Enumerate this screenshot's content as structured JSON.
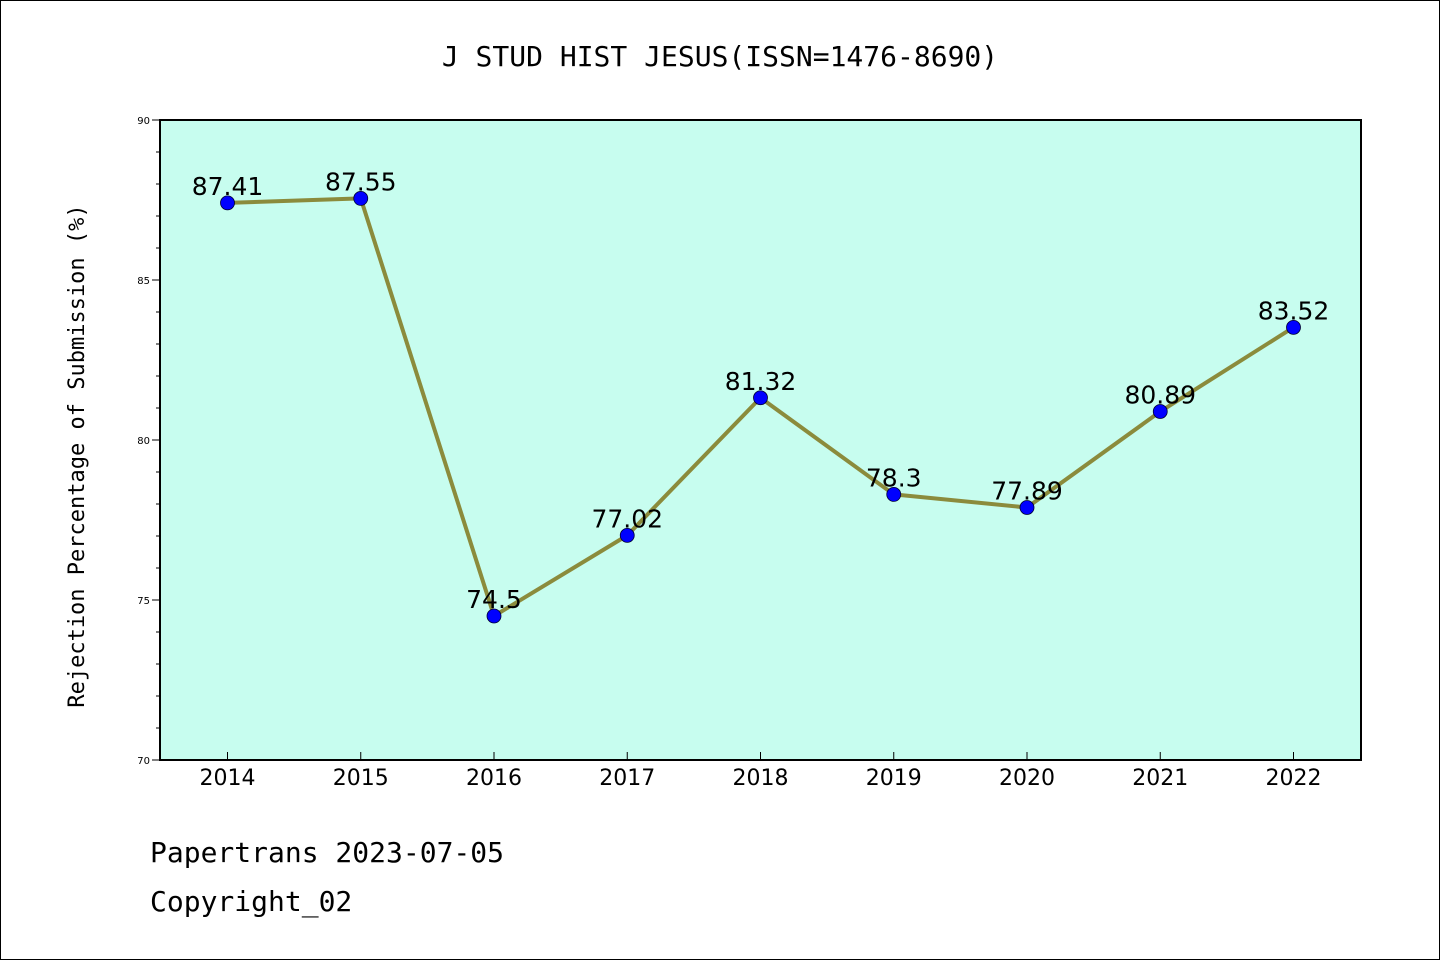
{
  "chart_data": {
    "type": "line",
    "title": "J STUD HIST JESUS(ISSN=1476-8690)",
    "xlabel": "",
    "ylabel": "Rejection Percentage of Submission (%)",
    "categories": [
      "2014",
      "2015",
      "2016",
      "2017",
      "2018",
      "2019",
      "2020",
      "2021",
      "2022"
    ],
    "values": [
      87.41,
      87.55,
      74.5,
      77.02,
      81.32,
      78.3,
      77.89,
      80.89,
      83.52
    ],
    "data_labels": [
      "87.41",
      "87.55",
      "74.5",
      "77.02",
      "81.32",
      "78.3",
      "77.89",
      "80.89",
      "83.52"
    ],
    "ylim": [
      70,
      90
    ],
    "yticks": [
      "70",
      "75",
      "80",
      "85",
      "90"
    ],
    "grid": false,
    "colors": {
      "plot_background": "#c7fdef",
      "line": "#8b8b3c",
      "marker": "#0000ff"
    }
  },
  "footer": {
    "line1": "Papertrans 2023-07-05",
    "line2": "Copyright_02"
  }
}
